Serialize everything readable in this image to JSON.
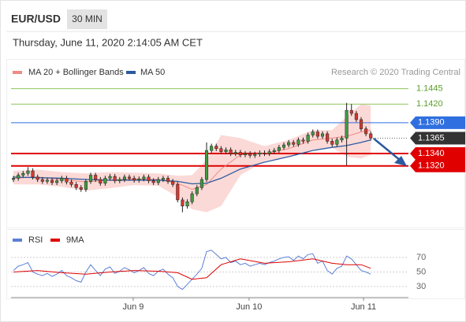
{
  "header": {
    "symbol": "EUR/USD",
    "interval": "30 MIN",
    "datetime": "Thursday, June 11, 2020 2:14:05 AM CET"
  },
  "chart_data": [
    {
      "type": "candlestick",
      "credit": "Research © 2020 Trading Central",
      "categories": [
        null,
        null,
        null,
        null,
        null,
        null,
        null,
        null,
        null,
        null,
        null,
        null,
        null,
        null,
        null,
        null,
        null,
        null,
        null,
        null,
        null,
        null,
        null,
        null,
        null,
        null,
        null,
        null,
        null,
        null,
        null,
        null,
        null,
        null,
        null,
        null,
        null,
        null,
        null,
        null,
        null,
        null,
        null,
        null,
        null,
        null,
        null,
        null,
        null,
        null,
        null,
        null,
        null,
        null,
        null,
        null,
        null,
        null,
        null,
        null,
        null,
        null,
        null,
        null,
        null,
        null,
        null,
        null,
        null,
        null,
        null,
        null,
        null,
        null,
        null
      ],
      "open": [
        1.1298,
        1.13,
        1.1305,
        1.1308,
        1.1312,
        1.1302,
        1.1298,
        1.1295,
        1.1297,
        1.1293,
        1.1296,
        1.13,
        1.1294,
        1.129,
        1.1285,
        1.1282,
        1.1295,
        1.1305,
        1.1298,
        1.1292,
        1.13,
        1.1303,
        1.1296,
        1.1298,
        1.1302,
        1.13,
        1.1297,
        1.1299,
        1.1302,
        1.1296,
        1.1293,
        1.1298,
        1.13,
        1.1295,
        1.129,
        1.1265,
        1.1255,
        1.1262,
        1.1275,
        1.1285,
        1.1298,
        1.1345,
        1.1352,
        1.1348,
        1.1343,
        1.1346,
        1.134,
        1.1342,
        1.1338,
        1.134,
        1.1337,
        1.1339,
        1.1341,
        1.134,
        1.1343,
        1.1345,
        1.135,
        1.1354,
        1.1358,
        1.1355,
        1.1362,
        1.136,
        1.137,
        1.1375,
        1.1368,
        1.1372,
        1.136,
        1.1355,
        1.1362,
        1.1365,
        1.141,
        1.1405,
        1.1395,
        1.138,
        1.1372
      ],
      "high": [
        1.1304,
        1.1309,
        1.1312,
        1.1318,
        1.1316,
        1.1306,
        1.1302,
        1.1301,
        1.1301,
        1.13,
        1.1304,
        1.1304,
        1.1298,
        1.1294,
        1.1289,
        1.1299,
        1.1309,
        1.1309,
        1.1302,
        1.1304,
        1.1307,
        1.1307,
        1.1302,
        1.1306,
        1.1306,
        1.1304,
        1.1303,
        1.1306,
        1.1306,
        1.13,
        1.1302,
        1.1304,
        1.1304,
        1.1299,
        1.1294,
        1.1269,
        1.1266,
        1.1279,
        1.1289,
        1.1302,
        1.1358,
        1.1356,
        1.1356,
        1.1352,
        1.135,
        1.135,
        1.1346,
        1.1346,
        1.1344,
        1.1344,
        1.1343,
        1.1345,
        1.1345,
        1.1347,
        1.1349,
        1.1354,
        1.1358,
        1.1362,
        1.1362,
        1.1366,
        1.1366,
        1.1374,
        1.1379,
        1.1379,
        1.1376,
        1.1376,
        1.1364,
        1.1366,
        1.1369,
        1.1422,
        1.142,
        1.1409,
        1.1399,
        1.1384,
        1.1376
      ],
      "low": [
        1.1294,
        1.1296,
        1.1301,
        1.1304,
        1.1298,
        1.1294,
        1.1291,
        1.1291,
        1.1289,
        1.1289,
        1.1292,
        1.129,
        1.1286,
        1.1281,
        1.1278,
        1.1278,
        1.1291,
        1.1294,
        1.1288,
        1.1288,
        1.1296,
        1.1292,
        1.1292,
        1.1294,
        1.1296,
        1.1293,
        1.1293,
        1.1295,
        1.1292,
        1.1289,
        1.1289,
        1.1294,
        1.1291,
        1.1286,
        1.1261,
        1.1245,
        1.1251,
        1.1258,
        1.1271,
        1.1281,
        1.1294,
        1.1341,
        1.1344,
        1.1339,
        1.1339,
        1.1336,
        1.1336,
        1.1334,
        1.1334,
        1.1333,
        1.1333,
        1.1335,
        1.1336,
        1.1336,
        1.1339,
        1.1341,
        1.1346,
        1.135,
        1.1351,
        1.1351,
        1.1356,
        1.1356,
        1.1366,
        1.1364,
        1.1364,
        1.1356,
        1.1351,
        1.1351,
        1.1358,
        1.1321,
        1.1401,
        1.1391,
        1.1376,
        1.1368,
        1.1361
      ],
      "close": [
        1.13,
        1.1305,
        1.1308,
        1.1312,
        1.1302,
        1.1298,
        1.1295,
        1.1297,
        1.1293,
        1.1296,
        1.13,
        1.1294,
        1.129,
        1.1285,
        1.1282,
        1.1295,
        1.1305,
        1.1298,
        1.1292,
        1.13,
        1.1303,
        1.1296,
        1.1298,
        1.1302,
        1.13,
        1.1297,
        1.1299,
        1.1302,
        1.1296,
        1.1293,
        1.1298,
        1.13,
        1.1295,
        1.129,
        1.1265,
        1.1255,
        1.1262,
        1.1275,
        1.1285,
        1.1298,
        1.1345,
        1.1352,
        1.1348,
        1.1343,
        1.1346,
        1.134,
        1.1342,
        1.1338,
        1.134,
        1.1337,
        1.1339,
        1.1341,
        1.134,
        1.1343,
        1.1345,
        1.135,
        1.1354,
        1.1358,
        1.1355,
        1.1362,
        1.136,
        1.137,
        1.1375,
        1.1368,
        1.1372,
        1.136,
        1.1355,
        1.1362,
        1.1365,
        1.141,
        1.1405,
        1.1395,
        1.138,
        1.1372,
        1.1365
      ],
      "up_color": "#3f9b3f",
      "down_color": "#d23a2f",
      "series": [
        {
          "name": "MA 20 + Bollinger Bands",
          "color": "#f08a84",
          "band_color": "#fbd9d7",
          "x": [
            0,
            5,
            10,
            15,
            20,
            25,
            30,
            34,
            37,
            40,
            43,
            47,
            52,
            57,
            62,
            66,
            69,
            72,
            74
          ],
          "values": [
            1.13,
            1.1302,
            1.1298,
            1.1294,
            1.1297,
            1.1299,
            1.1298,
            1.1292,
            1.1282,
            1.129,
            1.1315,
            1.1338,
            1.134,
            1.1348,
            1.1362,
            1.1365,
            1.1368,
            1.1375,
            1.1378
          ],
          "upper": [
            1.1312,
            1.1314,
            1.131,
            1.1308,
            1.131,
            1.1309,
            1.1308,
            1.1304,
            1.1305,
            1.133,
            1.137,
            1.1365,
            1.1352,
            1.1362,
            1.1378,
            1.1378,
            1.14,
            1.142,
            1.1418
          ],
          "lower": [
            1.129,
            1.129,
            1.1286,
            1.128,
            1.1284,
            1.1289,
            1.1288,
            1.127,
            1.125,
            1.1245,
            1.1255,
            1.1305,
            1.1328,
            1.1334,
            1.1346,
            1.135,
            1.1335,
            1.1332,
            1.1338
          ]
        },
        {
          "name": "MA 50",
          "color": "#2c5aa0",
          "x": [
            0,
            5,
            10,
            15,
            20,
            25,
            30,
            34,
            37,
            40,
            43,
            47,
            52,
            57,
            62,
            66,
            69,
            72,
            74
          ],
          "values": [
            1.1302,
            1.1301,
            1.13,
            1.1298,
            1.1297,
            1.1297,
            1.1297,
            1.1295,
            1.1291,
            1.1292,
            1.13,
            1.1315,
            1.1326,
            1.1335,
            1.1345,
            1.135,
            1.1353,
            1.1358,
            1.1362
          ]
        }
      ],
      "levels": [
        {
          "value": 1.1445,
          "kind": "resistance",
          "color": "#8cc65a"
        },
        {
          "value": 1.142,
          "label": "1.1420",
          "kind": "resistance",
          "color": "#8cc65a"
        },
        {
          "value": 1.139,
          "label": "1.1390",
          "kind": "pivot",
          "color": "#2f6fe0"
        },
        {
          "value": 1.1365,
          "kind": "current",
          "color": "#333333"
        },
        {
          "value": 1.134,
          "label": "1.1340",
          "kind": "support",
          "color": "#e00000"
        },
        {
          "value": 1.132,
          "label": "1.1320",
          "kind": "support",
          "color": "#e00000"
        }
      ],
      "xlim": [
        -0.5,
        81.8
      ],
      "ylim": [
        1.1219,
        1.1493
      ]
    },
    {
      "type": "line",
      "series": [
        {
          "name": "RSI",
          "color": "#5b7fd6",
          "values": [
            52,
            58,
            60,
            63,
            50,
            47,
            45,
            48,
            44,
            47,
            52,
            45,
            42,
            38,
            36,
            50,
            60,
            52,
            45,
            54,
            57,
            48,
            51,
            56,
            53,
            49,
            52,
            56,
            48,
            45,
            51,
            54,
            47,
            42,
            30,
            26,
            33,
            40,
            47,
            55,
            78,
            80,
            74,
            68,
            70,
            63,
            65,
            60,
            62,
            58,
            60,
            62,
            60,
            63,
            65,
            68,
            70,
            71,
            66,
            72,
            68,
            74,
            75,
            62,
            65,
            52,
            47,
            55,
            58,
            72,
            68,
            60,
            52,
            50,
            47
          ]
        },
        {
          "name": "9MA",
          "color": "#e00000",
          "x": [
            0,
            5,
            10,
            15,
            20,
            25,
            30,
            34,
            37,
            40,
            43,
            47,
            52,
            57,
            62,
            66,
            69,
            72,
            74
          ],
          "values": [
            50,
            52,
            49,
            47,
            50,
            52,
            51,
            49,
            40,
            42,
            60,
            68,
            62,
            64,
            68,
            62,
            60,
            60,
            55
          ]
        }
      ],
      "xlim": [
        -0.5,
        81.8
      ],
      "xticks": [
        {
          "value": 24.8,
          "label": "Jun 9"
        },
        {
          "value": 48.8,
          "label": "Jun 10"
        },
        {
          "value": 72.5,
          "label": "Jun 11"
        }
      ],
      "ylim": [
        18,
        83
      ],
      "yticks": [
        30,
        50,
        70
      ],
      "grid": true
    }
  ]
}
